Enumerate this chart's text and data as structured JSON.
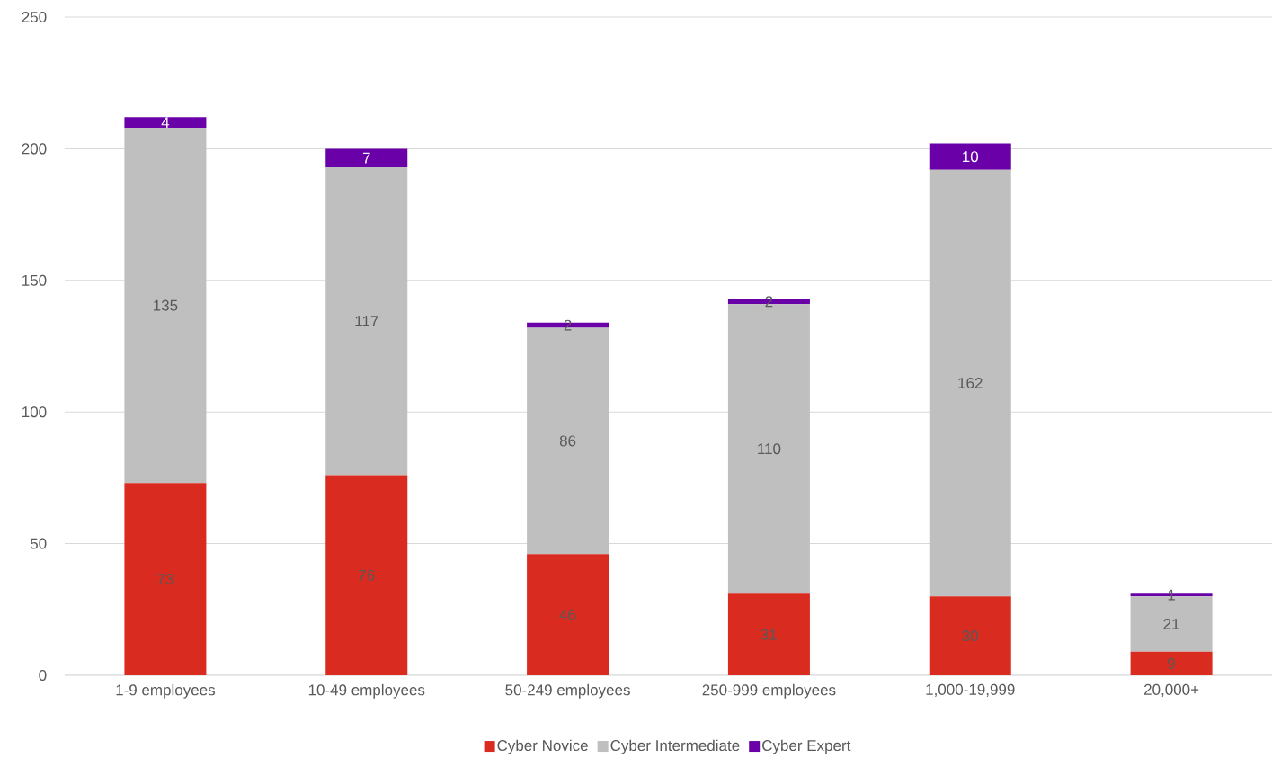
{
  "chart_data": {
    "type": "bar",
    "stacked": true,
    "categories": [
      "1-9 employees",
      "10-49 employees",
      "50-249 employees",
      "250-999 employees",
      "1,000-19,999",
      "20,000+"
    ],
    "series": [
      {
        "name": "Cyber Novice",
        "color": "#d92b1f",
        "values": [
          73,
          76,
          46,
          31,
          30,
          9
        ]
      },
      {
        "name": "Cyber Intermediate",
        "color": "#bfbfbf",
        "values": [
          135,
          117,
          86,
          110,
          162,
          21
        ]
      },
      {
        "name": "Cyber Expert",
        "color": "#6a00a8",
        "values": [
          4,
          7,
          2,
          2,
          10,
          1
        ]
      }
    ],
    "ylim": [
      0,
      250
    ],
    "yticks": [
      0,
      50,
      100,
      150,
      200,
      250
    ],
    "grid": "y",
    "legend": "bottom",
    "data_labels": true
  }
}
